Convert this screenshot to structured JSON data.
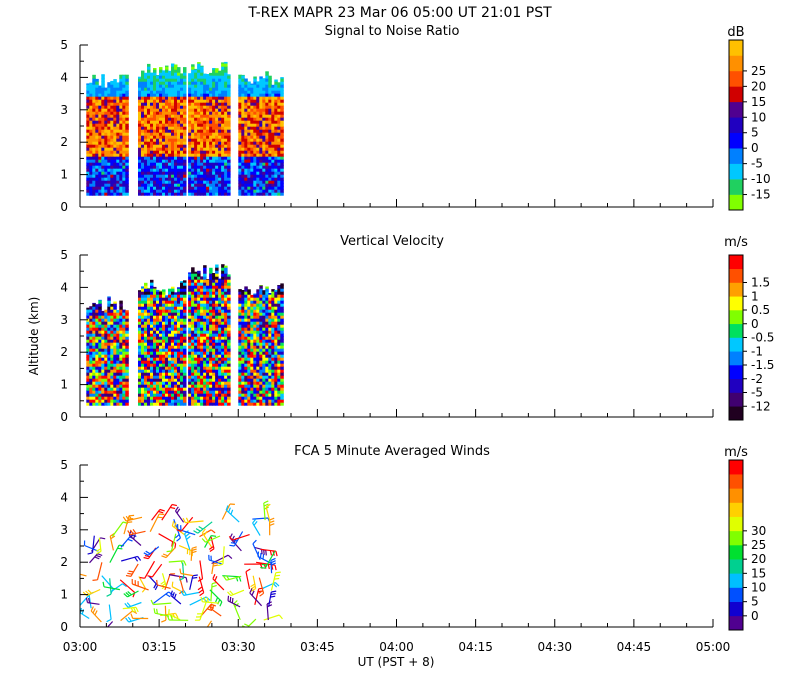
{
  "title_line": "T-REX   MAPR 23 Mar 06   05:00 UT   21:01   PST",
  "y_axis_label": "Altitude (km)",
  "x_axis_label": "UT  (PST + 8)",
  "chart_data": [
    {
      "type": "heatmap",
      "title": "Signal to Noise Ratio",
      "units": "dB",
      "xlabel": "",
      "ylabel": "",
      "xlim": [
        0,
        120
      ],
      "ylim": [
        0,
        5
      ],
      "x_tick_labels": [],
      "y_ticks": [
        0,
        1,
        2,
        3,
        4,
        5
      ],
      "colorbar": {
        "labels": [
          "-15",
          "-10",
          "-5",
          "0",
          "5",
          "10",
          "15",
          "20",
          "25"
        ],
        "colors": [
          "#80ff00",
          "#20d060",
          "#00c8ff",
          "#0080ff",
          "#0000ff",
          "#2000c0",
          "#500090",
          "#d00000",
          "#ff5000",
          "#ff9000",
          "#ffc000"
        ]
      },
      "segments": [
        {
          "start": 1.2,
          "end": 9.0,
          "bottom": 0.35,
          "top": 4.0
        },
        {
          "start": 11.0,
          "end": 19.8,
          "bottom": 0.35,
          "top": 4.3
        },
        {
          "start": 20.5,
          "end": 28.3,
          "bottom": 0.35,
          "top": 4.4
        },
        {
          "start": 30.0,
          "end": 38.0,
          "bottom": 0.35,
          "top": 4.1
        }
      ]
    },
    {
      "type": "heatmap",
      "title": "Vertical Velocity",
      "units": "m/s",
      "xlabel": "",
      "ylabel": "Altitude (km)",
      "xlim": [
        0,
        120
      ],
      "ylim": [
        0,
        5
      ],
      "x_tick_labels": [],
      "y_ticks": [
        0,
        1,
        2,
        3,
        4,
        5
      ],
      "colorbar": {
        "labels": [
          "-12",
          "-5",
          "-2",
          "-1.5",
          "-1",
          "-0.5",
          "0",
          "0.5",
          "1",
          "1.5"
        ],
        "colors": [
          "#200020",
          "#400070",
          "#2000c0",
          "#0000ff",
          "#0080ff",
          "#00c8ff",
          "#00e060",
          "#80ff00",
          "#ffff00",
          "#ffa000",
          "#ff5000",
          "#ff0000"
        ]
      },
      "segments": [
        {
          "start": 1.2,
          "end": 9.0,
          "bottom": 0.35,
          "top": 3.6
        },
        {
          "start": 11.0,
          "end": 19.8,
          "bottom": 0.35,
          "top": 4.1
        },
        {
          "start": 20.5,
          "end": 28.3,
          "bottom": 0.35,
          "top": 4.6
        },
        {
          "start": 30.0,
          "end": 38.0,
          "bottom": 0.35,
          "top": 4.1
        }
      ]
    },
    {
      "type": "scatter",
      "subtype": "wind-barbs",
      "title": "FCA 5 Minute Averaged Winds",
      "units": "m/s",
      "xlabel": "UT  (PST + 8)",
      "ylabel": "",
      "xlim": [
        0,
        120
      ],
      "ylim": [
        0,
        5
      ],
      "x_ticks": [
        0,
        15,
        30,
        45,
        60,
        75,
        90,
        105,
        120
      ],
      "x_tick_labels": [
        "03:00",
        "03:15",
        "03:30",
        "03:45",
        "04:00",
        "04:15",
        "04:30",
        "04:45",
        "05:00"
      ],
      "y_ticks": [
        0,
        1,
        2,
        3,
        4,
        5
      ],
      "colorbar": {
        "labels": [
          "0",
          "5",
          "10",
          "15",
          "20",
          "25",
          "30"
        ],
        "colors": [
          "#500090",
          "#1000d0",
          "#0050ff",
          "#00c0ff",
          "#00d090",
          "#00e030",
          "#80ff00",
          "#e0ff00",
          "#ffd000",
          "#ff9000",
          "#ff5000",
          "#ff0000"
        ]
      },
      "segments": [
        {
          "start": 1.2,
          "end": 9.0,
          "bottom": 0.1,
          "top": 3.2
        },
        {
          "start": 11.0,
          "end": 19.8,
          "bottom": 0.15,
          "top": 3.65
        },
        {
          "start": 20.5,
          "end": 28.3,
          "bottom": 0.15,
          "top": 3.6
        },
        {
          "start": 30.0,
          "end": 38.0,
          "bottom": 0.15,
          "top": 3.4
        }
      ]
    }
  ]
}
